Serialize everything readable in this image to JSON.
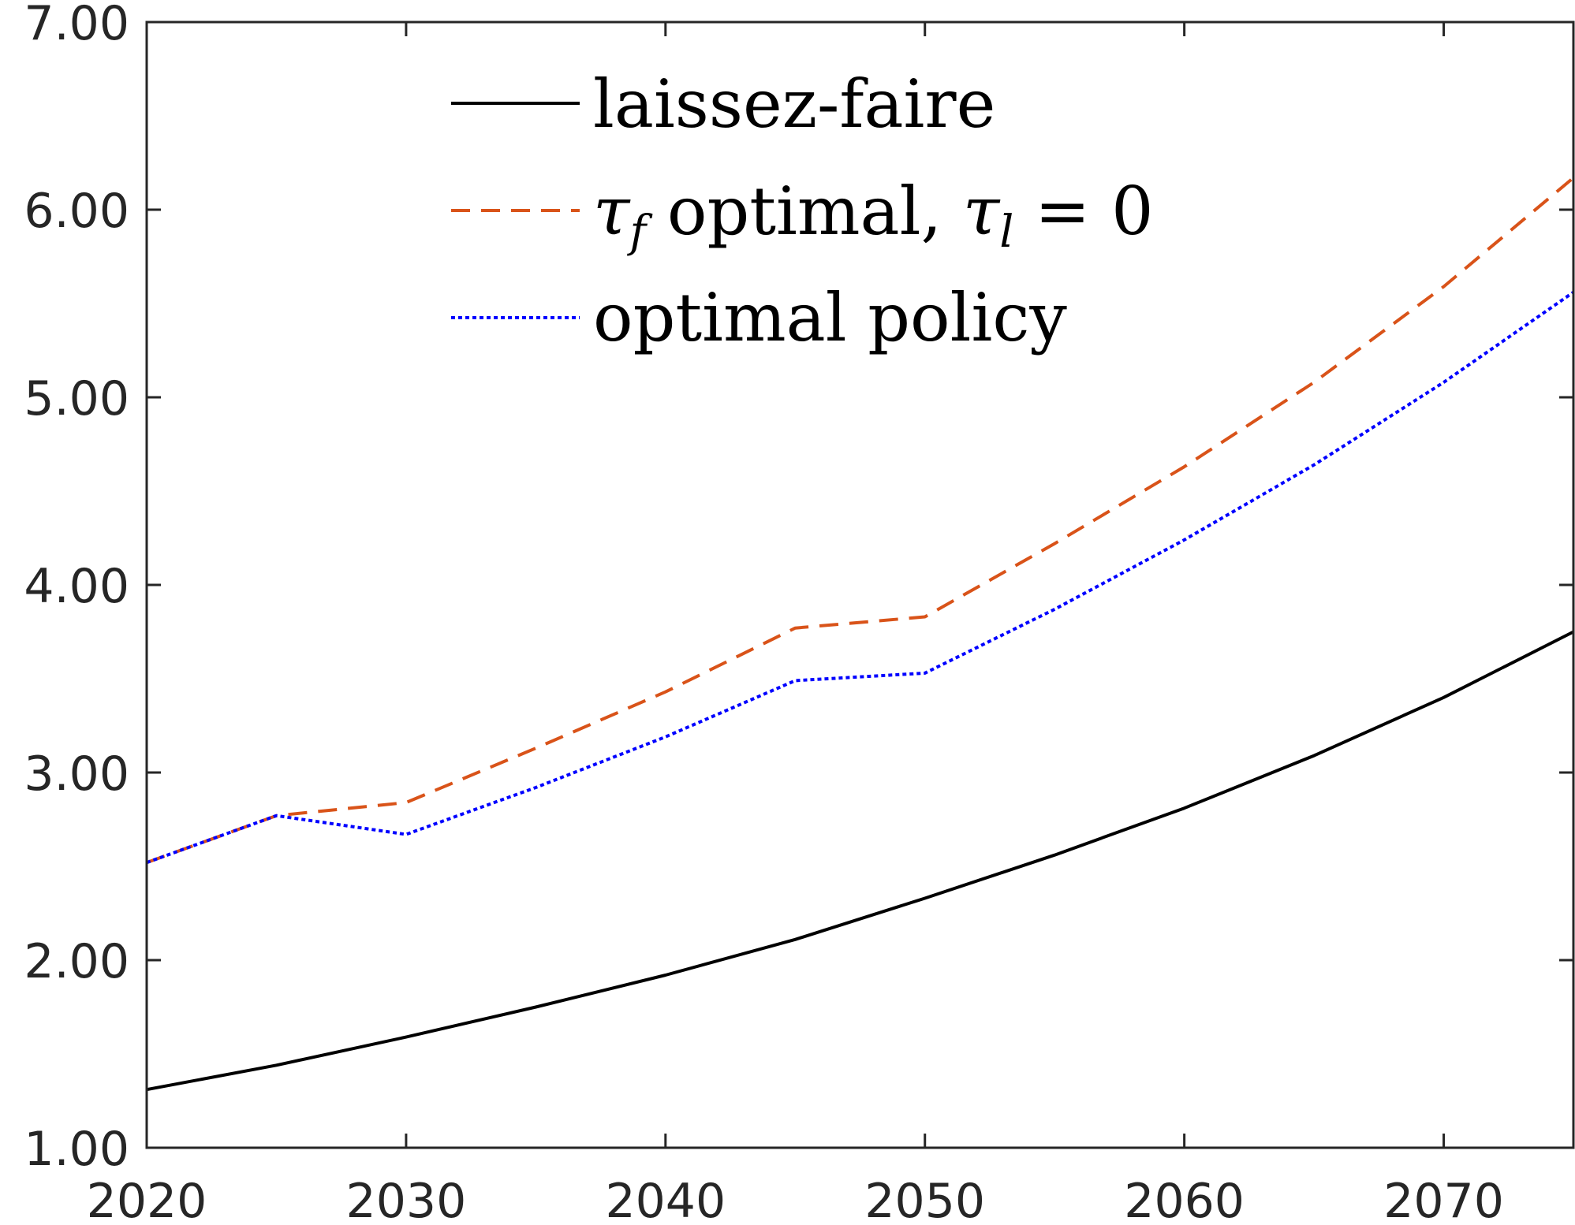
{
  "chart_data": {
    "type": "line",
    "title": "",
    "xlabel": "",
    "ylabel": "",
    "xlim": [
      2020,
      2075
    ],
    "ylim": [
      1.0,
      7.0
    ],
    "xticks": [
      "2020",
      "2030",
      "2040",
      "2050",
      "2060",
      "2070"
    ],
    "yticks": [
      "1.00",
      "2.00",
      "3.00",
      "4.00",
      "5.00",
      "6.00",
      "7.00"
    ],
    "grid": false,
    "legend_position": "top-center",
    "x": [
      2020,
      2025,
      2030,
      2035,
      2040,
      2045,
      2050,
      2055,
      2060,
      2065,
      2070,
      2075
    ],
    "series": [
      {
        "name": "laissez-faire",
        "color": "#000000",
        "style": "solid",
        "values": [
          1.31,
          1.44,
          1.59,
          1.75,
          1.92,
          2.11,
          2.33,
          2.56,
          2.81,
          3.09,
          3.4,
          3.75
        ]
      },
      {
        "name": "optimal, = 0",
        "name_parts": {
          "tau_f": "τ",
          "sub_f": "f",
          "mid": " optimal, ",
          "tau_l": "τ",
          "sub_l": "l",
          "tail": " = 0"
        },
        "color": "#D95319",
        "style": "dashed",
        "values": [
          2.52,
          2.77,
          2.84,
          3.13,
          3.43,
          3.77,
          3.83,
          4.22,
          4.63,
          5.08,
          5.59,
          6.17
        ]
      },
      {
        "name": "optimal policy",
        "color": "#0000FF",
        "style": "dotted",
        "values": [
          2.52,
          2.77,
          2.67,
          2.92,
          3.19,
          3.49,
          3.53,
          3.87,
          4.24,
          4.64,
          5.08,
          5.56
        ]
      }
    ]
  }
}
